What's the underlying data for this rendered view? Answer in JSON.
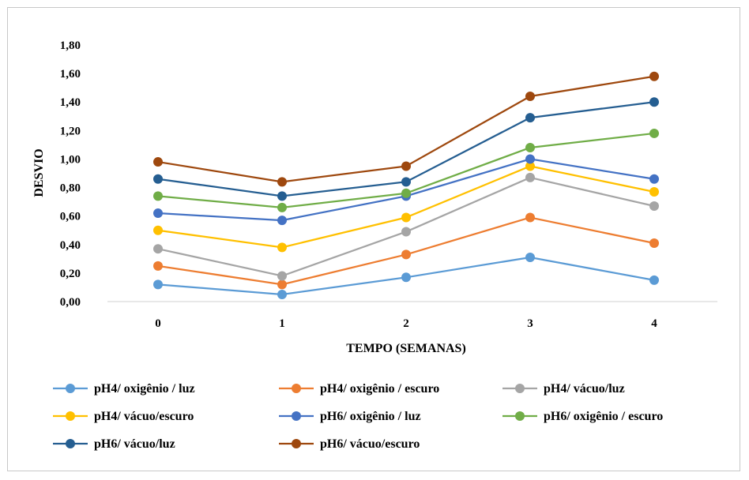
{
  "chart_data": {
    "type": "line",
    "title": "",
    "xlabel": "TEMPO (SEMANAS)",
    "ylabel": "DESVIO",
    "x": [
      "0",
      "1",
      "2",
      "3",
      "4"
    ],
    "ylim": [
      0,
      1.8
    ],
    "yticks": [
      "0,00",
      "0,20",
      "0,40",
      "0,60",
      "0,80",
      "1,00",
      "1,20",
      "1,40",
      "1,60",
      "1,80"
    ],
    "grid": false,
    "legend_position": "bottom",
    "series": [
      {
        "name": "pH4/ oxigênio / luz",
        "color": "#5B9BD5",
        "values": [
          0.12,
          0.05,
          0.17,
          0.31,
          0.15
        ]
      },
      {
        "name": "pH4/ oxigênio / escuro",
        "color": "#ED7D31",
        "values": [
          0.25,
          0.12,
          0.33,
          0.59,
          0.41
        ]
      },
      {
        "name": "pH4/ vácuo/luz",
        "color": "#A5A5A5",
        "values": [
          0.37,
          0.18,
          0.49,
          0.87,
          0.67
        ]
      },
      {
        "name": "pH4/ vácuo/escuro",
        "color": "#FFC000",
        "values": [
          0.5,
          0.38,
          0.59,
          0.95,
          0.77
        ]
      },
      {
        "name": "pH6/ oxigênio / luz",
        "color": "#4472C4",
        "values": [
          0.62,
          0.57,
          0.74,
          1.0,
          0.86
        ]
      },
      {
        "name": "pH6/ oxigênio / escuro",
        "color": "#70AD47",
        "values": [
          0.74,
          0.66,
          0.76,
          1.08,
          1.18
        ]
      },
      {
        "name": "pH6/ vácuo/luz",
        "color": "#255E91",
        "values": [
          0.86,
          0.74,
          0.84,
          1.29,
          1.4
        ]
      },
      {
        "name": "pH6/ vácuo/escuro",
        "color": "#9E480E",
        "values": [
          0.98,
          0.84,
          0.95,
          1.44,
          1.58
        ]
      }
    ]
  }
}
